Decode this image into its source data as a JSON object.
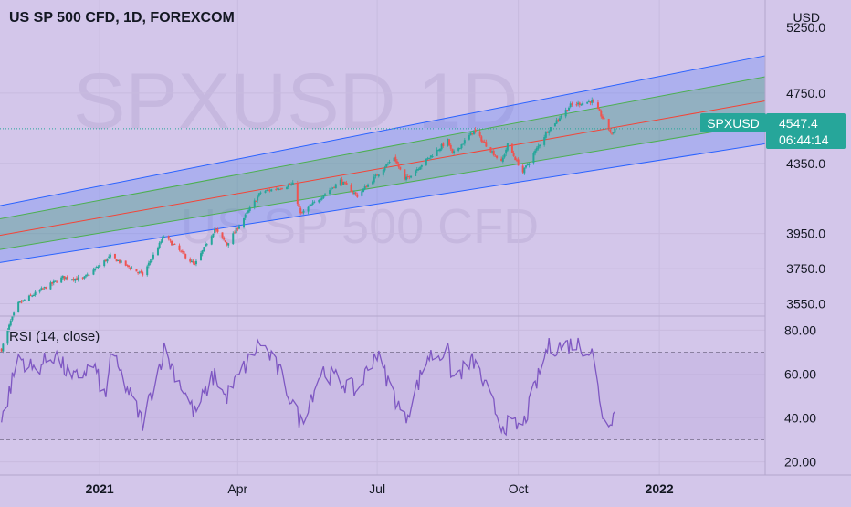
{
  "header": {
    "title": "US SP 500 CFD, 1D, FOREXCOM",
    "currency": "USD"
  },
  "watermark": {
    "symbol": "SPXUSD  1D",
    "description": "US SP 500 CFD"
  },
  "price_badge": {
    "symbol": "SPXUSD",
    "price": "4547.4",
    "countdown": "06:44:14"
  },
  "rsi_panel": {
    "label": "RSI (14, close)"
  },
  "colors": {
    "background": "#d3c6ea",
    "up_candle": "#26a69a",
    "down_candle": "#ef5350",
    "channel_outer": "#2962ff",
    "channel_inner": "#4caf50",
    "channel_mid": "#f44336",
    "rsi_line": "#7e57c2",
    "badge": "#26a69a"
  },
  "chart_data": [
    {
      "type": "candlestick",
      "title": "US SP 500 CFD, 1D, FOREXCOM",
      "x_tick_labels": [
        "2021",
        "Apr",
        "Jul",
        "Oct",
        "2022"
      ],
      "x_tick_dates": [
        "2021-01-01",
        "2021-04-01",
        "2021-07-01",
        "2021-10-01",
        "2022-01-01"
      ],
      "y_tick_labels": [
        "3550.0",
        "3750.0",
        "3950.0",
        "4350.0",
        "4750.0"
      ],
      "y_tick_values": [
        3550,
        3750,
        3950,
        4350,
        4750
      ],
      "y_partial_top_label": "5250.0",
      "ylim": [
        3480,
        5280
      ],
      "xlim": [
        "2020-10-28",
        "2022-03-11"
      ],
      "current_price": 4547.4,
      "close_path": [
        {
          "date": "2020-10-29",
          "value": 3290
        },
        {
          "date": "2020-11-04",
          "value": 3450
        },
        {
          "date": "2020-11-09",
          "value": 3550
        },
        {
          "date": "2020-11-24",
          "value": 3630
        },
        {
          "date": "2020-12-08",
          "value": 3700
        },
        {
          "date": "2020-12-21",
          "value": 3690
        },
        {
          "date": "2021-01-08",
          "value": 3820
        },
        {
          "date": "2021-01-29",
          "value": 3715
        },
        {
          "date": "2021-02-12",
          "value": 3935
        },
        {
          "date": "2021-03-04",
          "value": 3770
        },
        {
          "date": "2021-03-17",
          "value": 3975
        },
        {
          "date": "2021-03-25",
          "value": 3890
        },
        {
          "date": "2021-04-16",
          "value": 4185
        },
        {
          "date": "2021-05-07",
          "value": 4230
        },
        {
          "date": "2021-05-12",
          "value": 4060
        },
        {
          "date": "2021-06-07",
          "value": 4250
        },
        {
          "date": "2021-06-18",
          "value": 4165
        },
        {
          "date": "2021-07-12",
          "value": 4385
        },
        {
          "date": "2021-07-19",
          "value": 4255
        },
        {
          "date": "2021-08-16",
          "value": 4480
        },
        {
          "date": "2021-08-19",
          "value": 4400
        },
        {
          "date": "2021-09-02",
          "value": 4535
        },
        {
          "date": "2021-09-20",
          "value": 4355
        },
        {
          "date": "2021-09-24",
          "value": 4455
        },
        {
          "date": "2021-10-04",
          "value": 4300
        },
        {
          "date": "2021-10-20",
          "value": 4535
        },
        {
          "date": "2021-11-04",
          "value": 4680
        },
        {
          "date": "2021-11-18",
          "value": 4705
        },
        {
          "date": "2021-11-26",
          "value": 4595
        },
        {
          "date": "2021-12-01",
          "value": 4513
        },
        {
          "date": "2021-12-03",
          "value": 4547.4
        }
      ],
      "channel": {
        "x": [
          "2020-10-28",
          "2022-03-11"
        ],
        "upper": [
          4109,
          4963
        ],
        "upper_inner": [
          4034,
          4843
        ],
        "mid": [
          3940,
          4705
        ],
        "lower_inner": [
          3859,
          4578
        ],
        "lower": [
          3785,
          4461
        ]
      }
    },
    {
      "type": "line",
      "title": "RSI (14, close)",
      "y_tick_labels": [
        "20.00",
        "40.00",
        "60.00",
        "80.00"
      ],
      "y_tick_values": [
        20,
        40,
        60,
        80
      ],
      "ylim": [
        14,
        86
      ],
      "levels": [
        70,
        30
      ],
      "series": [
        {
          "x": [
            "2020-10-29",
            "2020-11-09",
            "2020-11-19",
            "2020-12-03",
            "2020-12-14",
            "2020-12-28",
            "2021-01-05",
            "2021-01-08",
            "2021-01-29",
            "2021-02-12",
            "2021-03-04",
            "2021-03-17",
            "2021-03-24",
            "2021-04-16",
            "2021-04-29",
            "2021-05-12",
            "2021-05-26",
            "2021-06-18",
            "2021-06-30",
            "2021-07-19",
            "2021-08-03",
            "2021-08-16",
            "2021-08-19",
            "2021-09-02",
            "2021-09-20",
            "2021-10-04",
            "2021-10-20",
            "2021-11-08",
            "2021-11-18",
            "2021-11-26",
            "2021-12-03"
          ],
          "values": [
            38,
            68,
            62,
            69,
            57,
            64,
            48,
            70,
            38,
            71,
            42,
            60,
            49,
            75,
            60,
            38,
            62,
            52,
            70,
            39,
            68,
            70,
            58,
            66,
            37,
            36,
            72,
            74,
            70,
            38,
            42
          ]
        }
      ]
    }
  ]
}
